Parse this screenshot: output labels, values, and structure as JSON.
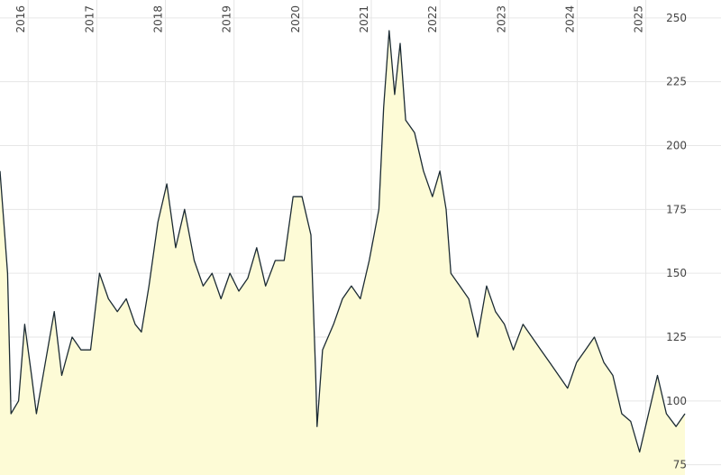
{
  "chart_data": {
    "type": "area",
    "x": [
      2015.59,
      2015.66,
      2015.7,
      2015.75,
      2015.86,
      2015.95,
      2016.05,
      2016.12,
      2016.25,
      2016.38,
      2016.49,
      2016.64,
      2016.77,
      2016.91,
      2017.04,
      2017.17,
      2017.3,
      2017.43,
      2017.56,
      2017.65,
      2017.76,
      2017.89,
      2018.02,
      2018.15,
      2018.28,
      2018.42,
      2018.55,
      2018.68,
      2018.81,
      2018.94,
      2019.07,
      2019.2,
      2019.33,
      2019.46,
      2019.6,
      2019.73,
      2019.86,
      2019.99,
      2020.12,
      2020.19,
      2020.21,
      2020.29,
      2020.45,
      2020.58,
      2020.71,
      2020.84,
      2020.97,
      2021.11,
      2021.18,
      2021.26,
      2021.34,
      2021.42,
      2021.5,
      2021.63,
      2021.76,
      2021.89,
      2022.0,
      2022.09,
      2022.16,
      2022.29,
      2022.42,
      2022.55,
      2022.68,
      2022.81,
      2022.94,
      2023.07,
      2023.21,
      2023.34,
      2023.47,
      2023.6,
      2023.73,
      2023.86,
      2023.99,
      2024.12,
      2024.25,
      2024.39,
      2024.52,
      2024.65,
      2024.78,
      2024.91,
      2025.04,
      2025.17,
      2025.3,
      2025.44,
      2025.57
    ],
    "series": [
      {
        "color": "#1c2b33",
        "fill": "#fdfbd6",
        "values": [
          190,
          165,
          150,
          95,
          100,
          130,
          110,
          95,
          115,
          135,
          110,
          125,
          120,
          120,
          150,
          140,
          135,
          140,
          130,
          127,
          145,
          170,
          185,
          160,
          175,
          155,
          145,
          150,
          140,
          150,
          143,
          148,
          160,
          145,
          155,
          155,
          180,
          180,
          165,
          110,
          90,
          120,
          130,
          140,
          145,
          140,
          155,
          175,
          215,
          245,
          220,
          240,
          210,
          205,
          190,
          180,
          190,
          175,
          150,
          145,
          140,
          125,
          145,
          135,
          130,
          120,
          130,
          125,
          120,
          115,
          110,
          105,
          115,
          120,
          125,
          115,
          110,
          95,
          92,
          80,
          95,
          110,
          95,
          90,
          95
        ]
      }
    ],
    "xlim": [
      2015.59,
      2025.57
    ],
    "xticks": [
      2016,
      2017,
      2018,
      2019,
      2020,
      2021,
      2022,
      2023,
      2024,
      2025
    ],
    "ylim": [
      71,
      257
    ],
    "yticks": [
      75,
      100,
      125,
      150,
      175,
      200,
      225,
      250
    ],
    "grid": true
  }
}
